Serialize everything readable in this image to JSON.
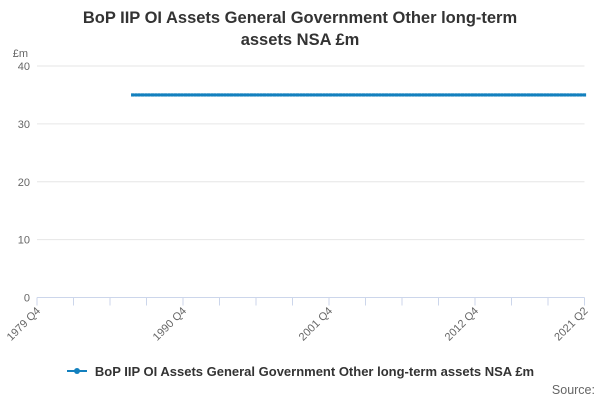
{
  "title": {
    "text": "BoP IIP OI Assets General Government Other long-term assets NSA £m",
    "lines": [
      "BoP IIP OI Assets General Government Other long-term",
      "assets NSA £m"
    ]
  },
  "y_axis": {
    "unit_label": "£m",
    "ticks": [
      0,
      10,
      20,
      30,
      40
    ],
    "max": 40
  },
  "x_axis": {
    "tick_count": 16,
    "labels": [
      {
        "text": "1979 Q4",
        "tick": 0
      },
      {
        "text": "1990 Q4",
        "tick": 4
      },
      {
        "text": "2001 Q4",
        "tick": 8
      },
      {
        "text": "2012 Q4",
        "tick": 12
      },
      {
        "text": "2021 Q2",
        "tick": 15
      }
    ]
  },
  "legend": {
    "label": "BoP IIP OI Assets General Government Other long-term assets NSA £m"
  },
  "footer": {
    "source_label": "Source:"
  },
  "colors": {
    "line": "#1380be",
    "grid": "#e6e6e6",
    "axis": "#ccd6eb",
    "tick_text": "#666666",
    "title_text": "#333333",
    "legend_text": "#333333",
    "source_text": "#666666"
  },
  "chart_data": {
    "type": "line",
    "title": "BoP IIP OI Assets General Government Other long-term assets NSA £m",
    "xlabel": "",
    "ylabel": "£m",
    "ylim": [
      0,
      40
    ],
    "yticks": [
      0,
      10,
      20,
      30,
      40
    ],
    "grid": "horizontal",
    "legend_position": "bottom",
    "x_range": [
      "1979 Q4",
      "2021 Q2"
    ],
    "x_total_quarters": 166,
    "x_tick_labels": [
      "1979 Q4",
      "1990 Q4",
      "2001 Q4",
      "2012 Q4",
      "2021 Q2"
    ],
    "series": [
      {
        "name": "BoP IIP OI Assets General Government Other long-term assets NSA £m",
        "color": "#1380be",
        "frequency": "quarterly",
        "marker": "square",
        "first_point": "1987 Q1",
        "last_point": "2021 Q2",
        "start_offset_quarters": 29,
        "n_points": 138,
        "constant_value": 35,
        "points": [
          [
            "1987 Q1",
            35
          ],
          [
            "2021 Q2",
            35
          ]
        ]
      }
    ]
  }
}
